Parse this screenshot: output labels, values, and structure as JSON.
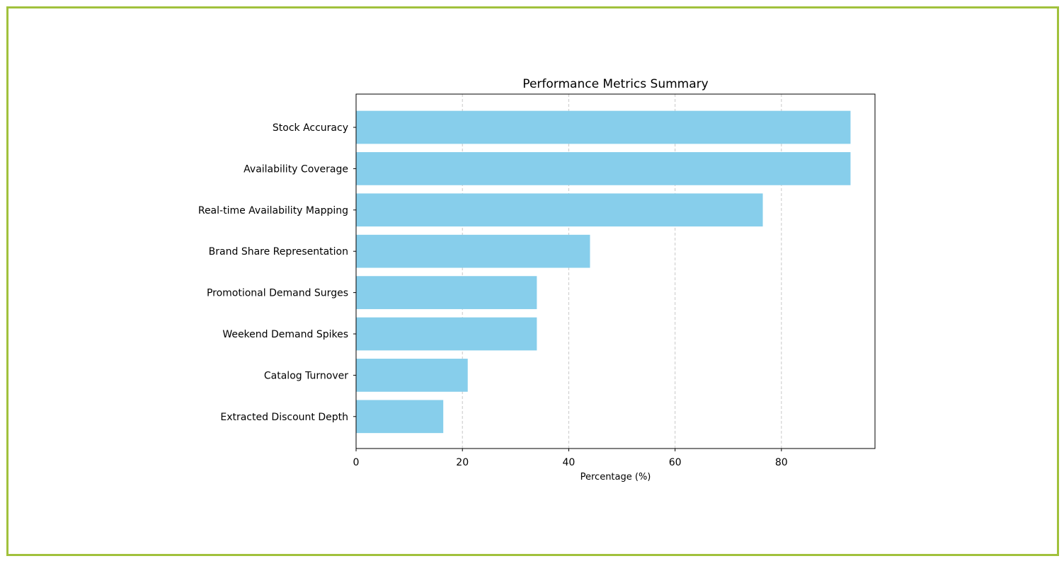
{
  "chart_data": {
    "type": "bar",
    "orientation": "horizontal",
    "title": "Performance Metrics Summary",
    "xlabel": "Percentage (%)",
    "ylabel": "",
    "categories": [
      "Stock Accuracy",
      "Availability Coverage",
      "Real-time Availability Mapping",
      "Brand Share Representation",
      "Promotional Demand Surges",
      "Weekend Demand Spikes",
      "Catalog Turnover",
      "Extracted Discount Depth"
    ],
    "values": [
      93,
      93,
      76.5,
      44,
      34,
      34,
      21,
      16.4
    ],
    "xlim": [
      0,
      97.6
    ],
    "xticks": [
      0,
      20,
      40,
      60,
      80
    ],
    "xtick_labels": [
      "0",
      "20",
      "40",
      "60",
      "80"
    ],
    "grid": "x-dashed",
    "bar_color": "#87ceeb",
    "grid_color": "#c8c8c8",
    "border_color": "#a1c13c"
  }
}
